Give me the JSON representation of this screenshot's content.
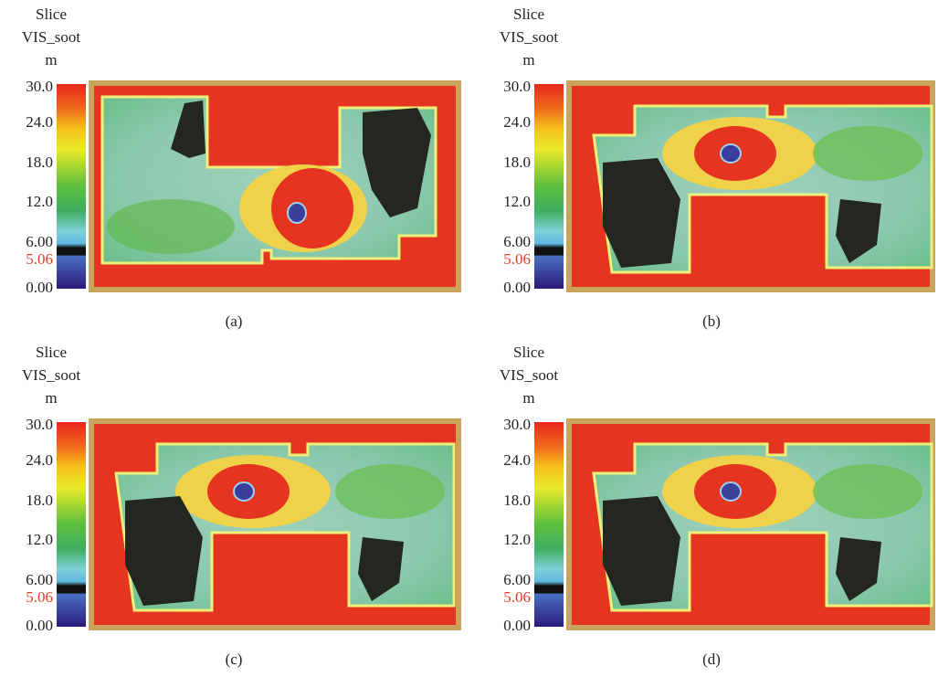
{
  "panels": [
    {
      "legend": {
        "title": [
          "Slice",
          "VIS_soot",
          "m"
        ],
        "ticks": [
          "30.0",
          "24.0",
          "18.0",
          "12.0",
          "6.00",
          "0.00"
        ],
        "threshold": "5.06"
      },
      "caption": "(a)"
    },
    {
      "legend": {
        "title": [
          "Slice",
          "VIS_soot",
          "m"
        ],
        "ticks": [
          "30.0",
          "24.0",
          "18.0",
          "12.0",
          "6.00",
          "0.00"
        ],
        "threshold": "5.06"
      },
      "caption": "(b)"
    },
    {
      "legend": {
        "title": [
          "Slice",
          "VIS_soot",
          "m"
        ],
        "ticks": [
          "30.0",
          "24.0",
          "18.0",
          "12.0",
          "6.00",
          "0.00"
        ],
        "threshold": "5.06"
      },
      "caption": "(c)"
    },
    {
      "legend": {
        "title": [
          "Slice",
          "VIS_soot",
          "m"
        ],
        "ticks": [
          "30.0",
          "24.0",
          "18.0",
          "12.0",
          "6.00",
          "0.00"
        ],
        "threshold": "5.06"
      },
      "caption": "(d)"
    }
  ]
}
